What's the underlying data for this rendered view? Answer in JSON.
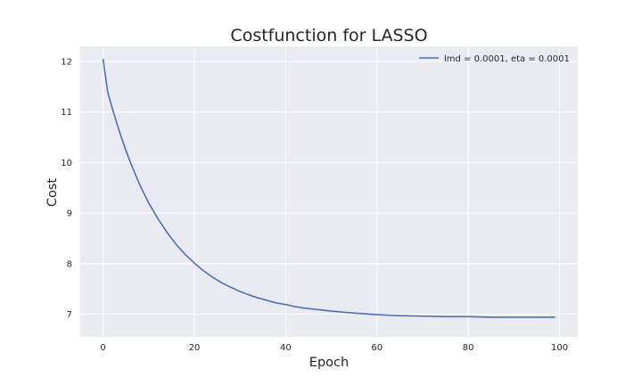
{
  "chart_data": {
    "type": "line",
    "title": "Costfunction for LASSO",
    "xlabel": "Epoch",
    "ylabel": "Cost",
    "xlim": [
      -5,
      104
    ],
    "ylim": [
      6.55,
      12.3
    ],
    "xticks": [
      0,
      20,
      40,
      60,
      80,
      100
    ],
    "yticks": [
      7,
      8,
      9,
      10,
      11,
      12
    ],
    "grid": true,
    "legend_position": "top-right",
    "background": "#EAEAF2",
    "series": [
      {
        "name": "lmd = 0.0001, eta = 0.0001",
        "color": "#4C72B0",
        "x": [
          0,
          1,
          2,
          3,
          4,
          5,
          6,
          7,
          8,
          9,
          10,
          12,
          14,
          16,
          18,
          20,
          22,
          24,
          26,
          28,
          30,
          32,
          34,
          36,
          38,
          40,
          42,
          44,
          46,
          48,
          50,
          55,
          60,
          65,
          70,
          75,
          80,
          85,
          90,
          95,
          99
        ],
        "values": [
          12.05,
          11.4,
          11.08,
          10.78,
          10.5,
          10.24,
          10.0,
          9.78,
          9.57,
          9.38,
          9.2,
          8.89,
          8.62,
          8.38,
          8.18,
          8.01,
          7.86,
          7.73,
          7.62,
          7.53,
          7.45,
          7.38,
          7.32,
          7.27,
          7.22,
          7.19,
          7.15,
          7.12,
          7.1,
          7.08,
          7.06,
          7.02,
          6.99,
          6.97,
          6.96,
          6.95,
          6.95,
          6.94,
          6.94,
          6.94,
          6.94
        ]
      }
    ]
  }
}
